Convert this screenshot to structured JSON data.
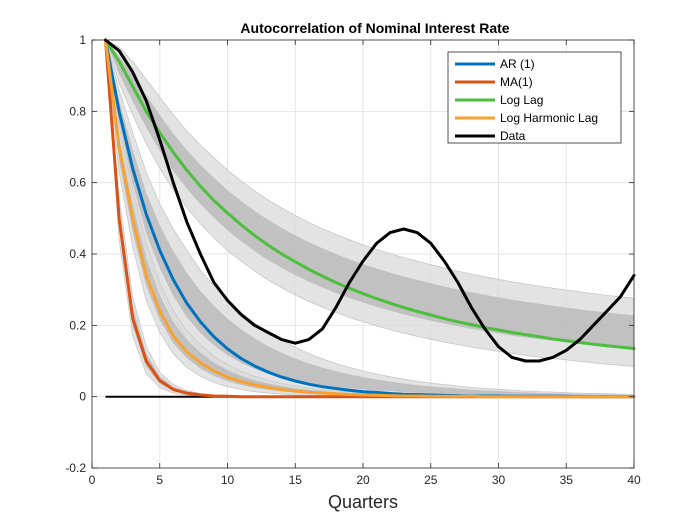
{
  "chart_data": {
    "type": "line",
    "title": "Autocorrelation of Nominal Interest Rate",
    "xlabel": "Quarters",
    "ylabel": "",
    "xlim": [
      0,
      40
    ],
    "ylim": [
      -0.2,
      1
    ],
    "xticks": [
      0,
      5,
      10,
      15,
      20,
      25,
      30,
      35,
      40
    ],
    "xtick_labels": [
      "0",
      "5",
      "10",
      "15",
      "20",
      "25",
      "30",
      "35",
      "40"
    ],
    "yticks": [
      -0.2,
      0,
      0.2,
      0.4,
      0.6,
      0.8,
      1
    ],
    "ytick_labels": [
      "-0.2",
      "0",
      "0.2",
      "0.4",
      "0.6",
      "0.8",
      "1"
    ],
    "grid": true,
    "legend_position": "top-right",
    "x": [
      1,
      2,
      3,
      4,
      5,
      6,
      7,
      8,
      9,
      10,
      11,
      12,
      13,
      14,
      15,
      16,
      17,
      18,
      19,
      20,
      21,
      22,
      23,
      24,
      25,
      26,
      27,
      28,
      29,
      30,
      31,
      32,
      33,
      34,
      35,
      36,
      37,
      38,
      39,
      40
    ],
    "series": [
      {
        "name": "AR (1)",
        "color": "#0072BD",
        "values": [
          1.0,
          0.8,
          0.64,
          0.512,
          0.41,
          0.328,
          0.262,
          0.21,
          0.168,
          0.134,
          0.107,
          0.086,
          0.069,
          0.055,
          0.044,
          0.035,
          0.028,
          0.023,
          0.018,
          0.014,
          0.012,
          0.009,
          0.007,
          0.006,
          0.005,
          0.004,
          0.003,
          0.002,
          0.002,
          0.002,
          0.001,
          0.001,
          0.001,
          0.001,
          0.001,
          0.0,
          0.0,
          0.0,
          0.0,
          0.0
        ]
      },
      {
        "name": "MA(1)",
        "color": "#D95319",
        "values": [
          1.0,
          0.5,
          0.22,
          0.1,
          0.045,
          0.02,
          0.01,
          0.005,
          0.002,
          0.001,
          0.0,
          0.0,
          0.0,
          0.0,
          0.0,
          0.0,
          0.0,
          0.0,
          0.0,
          0.0,
          0.0,
          0.0,
          0.0,
          0.0,
          0.0,
          0.0,
          0.0,
          0.0,
          0.0,
          0.0,
          0.0,
          0.0,
          0.0,
          0.0,
          0.0,
          0.0,
          0.0,
          0.0,
          0.0,
          0.0
        ]
      },
      {
        "name": "Log Lag",
        "color": "#4DBE3E",
        "values": [
          1.0,
          0.94,
          0.87,
          0.8,
          0.74,
          0.685,
          0.635,
          0.59,
          0.55,
          0.515,
          0.482,
          0.452,
          0.425,
          0.4,
          0.378,
          0.357,
          0.338,
          0.32,
          0.304,
          0.289,
          0.275,
          0.262,
          0.25,
          0.239,
          0.229,
          0.219,
          0.21,
          0.202,
          0.194,
          0.187,
          0.18,
          0.174,
          0.168,
          0.162,
          0.157,
          0.152,
          0.147,
          0.143,
          0.139,
          0.135
        ]
      },
      {
        "name": "Log Harmonic Lag",
        "color": "#F7A131",
        "values": [
          1.0,
          0.7,
          0.5,
          0.34,
          0.24,
          0.17,
          0.125,
          0.095,
          0.072,
          0.055,
          0.042,
          0.033,
          0.026,
          0.02,
          0.016,
          0.012,
          0.01,
          0.008,
          0.006,
          0.005,
          0.004,
          0.003,
          0.002,
          0.002,
          0.001,
          0.001,
          0.001,
          0.001,
          0.0,
          0.0,
          0.0,
          0.0,
          0.0,
          0.0,
          0.0,
          0.0,
          0.0,
          0.0,
          0.0,
          0.0
        ]
      },
      {
        "name": "Data",
        "color": "#000000",
        "values": [
          1.0,
          0.97,
          0.91,
          0.83,
          0.72,
          0.6,
          0.49,
          0.4,
          0.32,
          0.27,
          0.23,
          0.2,
          0.18,
          0.16,
          0.15,
          0.16,
          0.19,
          0.25,
          0.32,
          0.38,
          0.43,
          0.46,
          0.47,
          0.46,
          0.43,
          0.38,
          0.32,
          0.25,
          0.19,
          0.14,
          0.11,
          0.1,
          0.1,
          0.11,
          0.13,
          0.16,
          0.2,
          0.24,
          0.28,
          0.34
        ]
      }
    ],
    "zero_line": {
      "values": [
        0.0,
        0.0,
        0.0,
        0.0,
        0.0,
        0.0,
        0.0,
        0.0,
        0.0,
        0.0,
        0.0,
        0.0,
        0.0,
        0.0,
        0.0,
        0.0,
        0.0,
        0.0,
        0.0,
        0.0,
        0.0,
        0.0,
        0.0,
        0.0,
        0.0,
        0.0,
        0.0,
        0.0,
        0.0,
        0.0,
        0.0,
        0.0,
        0.0,
        0.0,
        0.0,
        0.0,
        0.0,
        0.0,
        0.0,
        0.0
      ],
      "color": "#000000"
    },
    "bands": [
      {
        "of": "Log Lag",
        "upper": [
          1.0,
          0.98,
          0.94,
          0.89,
          0.84,
          0.79,
          0.745,
          0.705,
          0.67,
          0.635,
          0.605,
          0.577,
          0.552,
          0.529,
          0.508,
          0.489,
          0.471,
          0.455,
          0.44,
          0.426,
          0.413,
          0.401,
          0.39,
          0.38,
          0.37,
          0.361,
          0.352,
          0.344,
          0.336,
          0.329,
          0.322,
          0.316,
          0.31,
          0.304,
          0.299,
          0.294,
          0.289,
          0.284,
          0.28,
          0.276
        ],
        "lower": [
          1.0,
          0.88,
          0.79,
          0.71,
          0.64,
          0.58,
          0.53,
          0.485,
          0.445,
          0.41,
          0.38,
          0.352,
          0.327,
          0.305,
          0.285,
          0.267,
          0.251,
          0.236,
          0.222,
          0.21,
          0.198,
          0.188,
          0.178,
          0.169,
          0.161,
          0.153,
          0.146,
          0.139,
          0.133,
          0.127,
          0.121,
          0.116,
          0.111,
          0.107,
          0.103,
          0.099,
          0.095,
          0.091,
          0.088,
          0.085
        ]
      },
      {
        "of": "AR (1)",
        "upper": [
          1.0,
          0.86,
          0.74,
          0.63,
          0.54,
          0.47,
          0.41,
          0.355,
          0.31,
          0.27,
          0.236,
          0.206,
          0.18,
          0.158,
          0.138,
          0.121,
          0.106,
          0.093,
          0.082,
          0.072,
          0.063,
          0.056,
          0.049,
          0.043,
          0.038,
          0.034,
          0.03,
          0.026,
          0.023,
          0.021,
          0.018,
          0.016,
          0.014,
          0.013,
          0.011,
          0.01,
          0.009,
          0.008,
          0.007,
          0.006
        ],
        "lower": [
          1.0,
          0.74,
          0.55,
          0.4,
          0.3,
          0.22,
          0.16,
          0.12,
          0.088,
          0.065,
          0.048,
          0.035,
          0.026,
          0.019,
          0.014,
          0.01,
          0.008,
          0.006,
          0.004,
          0.003,
          0.002,
          0.002,
          0.001,
          0.001,
          0.001,
          0.001,
          0.0,
          0.0,
          0.0,
          0.0,
          0.0,
          0.0,
          0.0,
          0.0,
          0.0,
          0.0,
          0.0,
          0.0,
          0.0,
          0.0
        ]
      },
      {
        "of": "Log Harmonic Lag",
        "upper": [
          1.0,
          0.76,
          0.58,
          0.43,
          0.32,
          0.24,
          0.185,
          0.145,
          0.113,
          0.09,
          0.071,
          0.057,
          0.046,
          0.037,
          0.03,
          0.024,
          0.02,
          0.016,
          0.013,
          0.011,
          0.009,
          0.007,
          0.006,
          0.005,
          0.004,
          0.003,
          0.003,
          0.002,
          0.002,
          0.001,
          0.001,
          0.001,
          0.001,
          0.001,
          0.0,
          0.0,
          0.0,
          0.0,
          0.0,
          0.0
        ],
        "lower": [
          1.0,
          0.63,
          0.42,
          0.27,
          0.18,
          0.12,
          0.082,
          0.057,
          0.04,
          0.028,
          0.02,
          0.014,
          0.01,
          0.007,
          0.005,
          0.004,
          0.003,
          0.002,
          0.001,
          0.001,
          0.001,
          0.0,
          0.0,
          0.0,
          0.0,
          0.0,
          0.0,
          0.0,
          0.0,
          0.0,
          0.0,
          0.0,
          0.0,
          0.0,
          0.0,
          0.0,
          0.0,
          0.0,
          0.0,
          0.0
        ]
      },
      {
        "of": "MA(1)",
        "upper": [
          1.0,
          0.56,
          0.28,
          0.14,
          0.068,
          0.034,
          0.017,
          0.009,
          0.004,
          0.002,
          0.001,
          0.0,
          0.0,
          0.0,
          0.0,
          0.0,
          0.0,
          0.0,
          0.0,
          0.0,
          0.0,
          0.0,
          0.0,
          0.0,
          0.0,
          0.0,
          0.0,
          0.0,
          0.0,
          0.0,
          0.0,
          0.0,
          0.0,
          0.0,
          0.0,
          0.0,
          0.0,
          0.0,
          0.0,
          0.0
        ],
        "lower": [
          1.0,
          0.44,
          0.17,
          0.065,
          0.025,
          0.01,
          0.004,
          0.002,
          0.001,
          0.0,
          0.0,
          0.0,
          0.0,
          0.0,
          0.0,
          0.0,
          0.0,
          0.0,
          0.0,
          0.0,
          0.0,
          0.0,
          0.0,
          0.0,
          0.0,
          0.0,
          0.0,
          0.0,
          0.0,
          0.0,
          0.0,
          0.0,
          0.0,
          0.0,
          0.0,
          0.0,
          0.0,
          0.0,
          0.0,
          0.0
        ]
      }
    ],
    "band_colors": {
      "outer": "#D9D9D9",
      "inner": "#A6A6A6",
      "edge": "#C8C8C8"
    },
    "axis_color": "#262626",
    "grid_color": "#E6E6E6"
  }
}
